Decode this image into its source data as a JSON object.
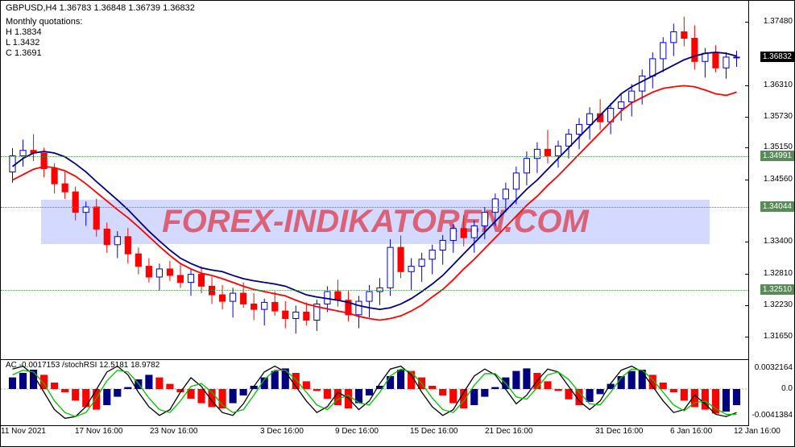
{
  "header": {
    "symbol": "GBPUSD,H4",
    "ohlc": "1.36783 1.36848 1.36739 1.36832"
  },
  "monthly": {
    "title": "Monthly quotations:",
    "h": "H 1.3834",
    "l": "L 1.3432",
    "c": "C 1.3691"
  },
  "watermark": "FOREX-INDIKATOREN.COM",
  "main_chart": {
    "ylim": [
      1.313,
      1.378
    ],
    "yticks": [
      1.3748,
      1.3631,
      1.3573,
      1.3515,
      1.3456,
      1.334,
      1.3281,
      1.3223,
      1.3165
    ],
    "ytick_labels": [
      "1.37480",
      "1.36310",
      "1.35730",
      "1.35150",
      "1.34560",
      "1.33400",
      "1.32810",
      "1.32230",
      "1.31650"
    ],
    "current_price": 1.36832,
    "current_price_label": "1.36832",
    "levels": [
      {
        "value": 1.34991,
        "label": "1.34991"
      },
      {
        "value": 1.34044,
        "label": "1.34044"
      },
      {
        "value": 1.3251,
        "label": "1.32510"
      }
    ],
    "ma_blue_color": "#000080",
    "ma_red_color": "#ff0000",
    "candle_up": "#0000d0",
    "candle_dn": "#ff0000",
    "ma_blue": [
      1.348,
      1.3495,
      1.3505,
      1.3508,
      1.3505,
      1.3498,
      1.3485,
      1.347,
      1.3452,
      1.3435,
      1.3418,
      1.34,
      1.338,
      1.336,
      1.3342,
      1.3325,
      1.331,
      1.33,
      1.3292,
      1.3288,
      1.3285,
      1.3278,
      1.3272,
      1.3268,
      1.3265,
      1.3262,
      1.3258,
      1.325,
      1.3242,
      1.3238,
      1.3235,
      1.3232,
      1.3228,
      1.3222,
      1.3218,
      1.3215,
      1.3218,
      1.3225,
      1.3235,
      1.3248,
      1.3262,
      1.3278,
      1.3298,
      1.3318,
      1.3338,
      1.3358,
      1.3378,
      1.3398,
      1.3418,
      1.3438,
      1.3455,
      1.3475,
      1.3495,
      1.3515,
      1.3535,
      1.3555,
      1.3575,
      1.3595,
      1.3615,
      1.3628,
      1.3638,
      1.3648,
      1.3658,
      1.3668,
      1.3678,
      1.3685,
      1.369,
      1.3692,
      1.369,
      1.3685
    ],
    "ma_red": [
      1.3455,
      1.3465,
      1.3475,
      1.348,
      1.3478,
      1.3472,
      1.3462,
      1.3448,
      1.3432,
      1.3416,
      1.34,
      1.3385,
      1.3368,
      1.335,
      1.3332,
      1.3315,
      1.33,
      1.329,
      1.3282,
      1.3278,
      1.3272,
      1.3265,
      1.3258,
      1.3252,
      1.3248,
      1.3244,
      1.324,
      1.3232,
      1.3225,
      1.322,
      1.3216,
      1.3212,
      1.3208,
      1.3202,
      1.3198,
      1.3195,
      1.3198,
      1.3203,
      1.3212,
      1.3223,
      1.3238,
      1.3252,
      1.327,
      1.329,
      1.3308,
      1.3328,
      1.3348,
      1.3368,
      1.3388,
      1.3408,
      1.3425,
      1.3445,
      1.3463,
      1.3483,
      1.3503,
      1.3523,
      1.3543,
      1.3563,
      1.3583,
      1.3598,
      1.3608,
      1.3618,
      1.3625,
      1.3628,
      1.363,
      1.3628,
      1.3622,
      1.3615,
      1.3612,
      1.3618
    ],
    "candles": [
      [
        1.347,
        1.3514,
        1.345,
        1.35
      ],
      [
        1.35,
        1.353,
        1.348,
        1.351
      ],
      [
        1.351,
        1.354,
        1.349,
        1.3505
      ],
      [
        1.3505,
        1.3515,
        1.346,
        1.3476
      ],
      [
        1.3476,
        1.3486,
        1.343,
        1.3448
      ],
      [
        1.3448,
        1.347,
        1.342,
        1.3433
      ],
      [
        1.3433,
        1.3443,
        1.338,
        1.3395
      ],
      [
        1.3395,
        1.3415,
        1.337,
        1.3405
      ],
      [
        1.3405,
        1.342,
        1.335,
        1.3364
      ],
      [
        1.3364,
        1.3376,
        1.332,
        1.3335
      ],
      [
        1.3335,
        1.336,
        1.331,
        1.335
      ],
      [
        1.335,
        1.3366,
        1.33,
        1.3318
      ],
      [
        1.3318,
        1.333,
        1.328,
        1.3295
      ],
      [
        1.3295,
        1.331,
        1.3265,
        1.3275
      ],
      [
        1.3275,
        1.33,
        1.325,
        1.329
      ],
      [
        1.329,
        1.3305,
        1.3268,
        1.3278
      ],
      [
        1.3278,
        1.3298,
        1.3255,
        1.3265
      ],
      [
        1.3265,
        1.329,
        1.324,
        1.328
      ],
      [
        1.328,
        1.3295,
        1.3245,
        1.3258
      ],
      [
        1.3258,
        1.3275,
        1.3225,
        1.3242
      ],
      [
        1.3242,
        1.326,
        1.3215,
        1.323
      ],
      [
        1.323,
        1.3255,
        1.32,
        1.3245
      ],
      [
        1.3245,
        1.3265,
        1.3218,
        1.3225
      ],
      [
        1.3225,
        1.3245,
        1.3195,
        1.3215
      ],
      [
        1.3215,
        1.3235,
        1.3185,
        1.3228
      ],
      [
        1.3228,
        1.3248,
        1.3203,
        1.3212
      ],
      [
        1.3212,
        1.323,
        1.318,
        1.3198
      ],
      [
        1.3198,
        1.3222,
        1.317,
        1.321
      ],
      [
        1.321,
        1.3228,
        1.3185,
        1.3195
      ],
      [
        1.3195,
        1.3233,
        1.3175,
        1.3225
      ],
      [
        1.3225,
        1.3258,
        1.321,
        1.3248
      ],
      [
        1.3248,
        1.327,
        1.322,
        1.3232
      ],
      [
        1.3232,
        1.325,
        1.3193,
        1.3205
      ],
      [
        1.3205,
        1.324,
        1.318,
        1.323
      ],
      [
        1.323,
        1.326,
        1.32,
        1.3248
      ],
      [
        1.3248,
        1.3273,
        1.3223,
        1.3255
      ],
      [
        1.3255,
        1.3345,
        1.324,
        1.333
      ],
      [
        1.333,
        1.3352,
        1.3273,
        1.3285
      ],
      [
        1.3285,
        1.331,
        1.325,
        1.3295
      ],
      [
        1.3295,
        1.332,
        1.3266,
        1.3308
      ],
      [
        1.3308,
        1.3335,
        1.328,
        1.3325
      ],
      [
        1.3325,
        1.3353,
        1.3298,
        1.3343
      ],
      [
        1.3343,
        1.3373,
        1.332,
        1.3365
      ],
      [
        1.3365,
        1.339,
        1.3332,
        1.3348
      ],
      [
        1.3348,
        1.338,
        1.332,
        1.337
      ],
      [
        1.337,
        1.3405,
        1.3345,
        1.3395
      ],
      [
        1.3395,
        1.343,
        1.337,
        1.342
      ],
      [
        1.342,
        1.345,
        1.3395,
        1.3438
      ],
      [
        1.3438,
        1.348,
        1.341,
        1.3468
      ],
      [
        1.3468,
        1.3508,
        1.3445,
        1.3495
      ],
      [
        1.3495,
        1.3525,
        1.3468,
        1.3512
      ],
      [
        1.3512,
        1.3548,
        1.3486,
        1.35
      ],
      [
        1.35,
        1.3528,
        1.3478,
        1.3518
      ],
      [
        1.3518,
        1.355,
        1.3495,
        1.354
      ],
      [
        1.354,
        1.357,
        1.3512,
        1.3558
      ],
      [
        1.3558,
        1.359,
        1.353,
        1.3578
      ],
      [
        1.3578,
        1.3605,
        1.3548,
        1.3563
      ],
      [
        1.3563,
        1.3598,
        1.354,
        1.3588
      ],
      [
        1.3588,
        1.3614,
        1.3565,
        1.36
      ],
      [
        1.36,
        1.3633,
        1.3573,
        1.362
      ],
      [
        1.362,
        1.366,
        1.3595,
        1.3648
      ],
      [
        1.3648,
        1.3692,
        1.3625,
        1.368
      ],
      [
        1.368,
        1.372,
        1.3655,
        1.371
      ],
      [
        1.371,
        1.3745,
        1.3685,
        1.373
      ],
      [
        1.373,
        1.3758,
        1.3703,
        1.3718
      ],
      [
        1.3718,
        1.3742,
        1.366,
        1.3675
      ],
      [
        1.3675,
        1.37,
        1.3645,
        1.369
      ],
      [
        1.369,
        1.3705,
        1.3655,
        1.3663
      ],
      [
        1.3663,
        1.3692,
        1.3643,
        1.3683
      ],
      [
        1.3683,
        1.3695,
        1.3665,
        1.3683
      ]
    ]
  },
  "sub_chart": {
    "label": "AC -0.0017153 /stochRSI 12.5181 18.9782",
    "ylim": [
      -0.005,
      0.004
    ],
    "yticks": [
      0.0032164,
      0.0,
      -0.0041384
    ],
    "ytick_labels": [
      "0.0032164",
      "0.0",
      "-0.0041384"
    ],
    "bar_up": "#000080",
    "bar_dn": "#ff0000",
    "line1": "#000000",
    "line2": "#00c000",
    "bars": [
      0.0018,
      0.0025,
      0.003,
      0.0022,
      0.001,
      -0.0005,
      -0.0018,
      -0.0028,
      -0.0032,
      -0.0025,
      -0.0012,
      0.0003,
      0.0015,
      0.0022,
      0.0018,
      0.0008,
      -0.0005,
      -0.0015,
      -0.0022,
      -0.0028,
      -0.003,
      -0.0022,
      -0.001,
      0.0005,
      0.0018,
      0.0028,
      0.0032,
      0.0025,
      0.0012,
      -0.0003,
      -0.0015,
      -0.0025,
      -0.003,
      -0.0022,
      -0.001,
      0.0005,
      0.002,
      0.003,
      0.0028,
      0.0018,
      0.0005,
      -0.001,
      -0.0022,
      -0.003,
      -0.0025,
      -0.0012,
      0.0003,
      0.0018,
      0.0028,
      0.0032,
      0.0025,
      0.0012,
      -0.0003,
      -0.0016,
      -0.0025,
      -0.002,
      -0.0008,
      0.0008,
      0.002,
      0.0028,
      0.003,
      0.0022,
      0.001,
      -0.0005,
      -0.0018,
      -0.0028,
      -0.0032,
      -0.0038,
      -0.0035,
      -0.0025
    ],
    "stoch1": [
      90,
      95,
      80,
      50,
      20,
      5,
      8,
      25,
      55,
      85,
      95,
      80,
      50,
      25,
      10,
      20,
      50,
      75,
      60,
      35,
      15,
      10,
      30,
      60,
      85,
      95,
      85,
      60,
      35,
      15,
      25,
      50,
      40,
      20,
      35,
      65,
      90,
      95,
      80,
      50,
      25,
      10,
      20,
      50,
      78,
      90,
      80,
      55,
      30,
      45,
      70,
      90,
      85,
      60,
      35,
      20,
      35,
      65,
      88,
      95,
      85,
      60,
      35,
      15,
      20,
      45,
      30,
      12,
      8,
      15
    ],
    "stoch2": [
      80,
      88,
      85,
      65,
      35,
      15,
      8,
      15,
      40,
      70,
      88,
      85,
      65,
      40,
      20,
      15,
      35,
      60,
      65,
      50,
      28,
      15,
      20,
      45,
      72,
      88,
      88,
      72,
      50,
      28,
      20,
      38,
      45,
      32,
      28,
      50,
      78,
      90,
      85,
      65,
      40,
      20,
      15,
      35,
      62,
      82,
      82,
      65,
      42,
      38,
      58,
      80,
      85,
      72,
      50,
      30,
      28,
      50,
      75,
      90,
      88,
      72,
      50,
      28,
      18,
      32,
      35,
      22,
      12,
      12
    ]
  },
  "x_axis": {
    "labels": [
      "11 Nov 2021",
      "17 Nov 16:00",
      "23 Nov 16:00",
      "3 Dec 16:00",
      "9 Dec 16:00",
      "15 Dec 16:00",
      "21 Dec 16:00",
      "31 Dec 16:00",
      "6 Jan 16:00",
      "12 Jan 16:00"
    ],
    "positions": [
      30,
      122,
      215,
      352,
      445,
      538,
      631,
      768,
      861,
      940
    ]
  }
}
